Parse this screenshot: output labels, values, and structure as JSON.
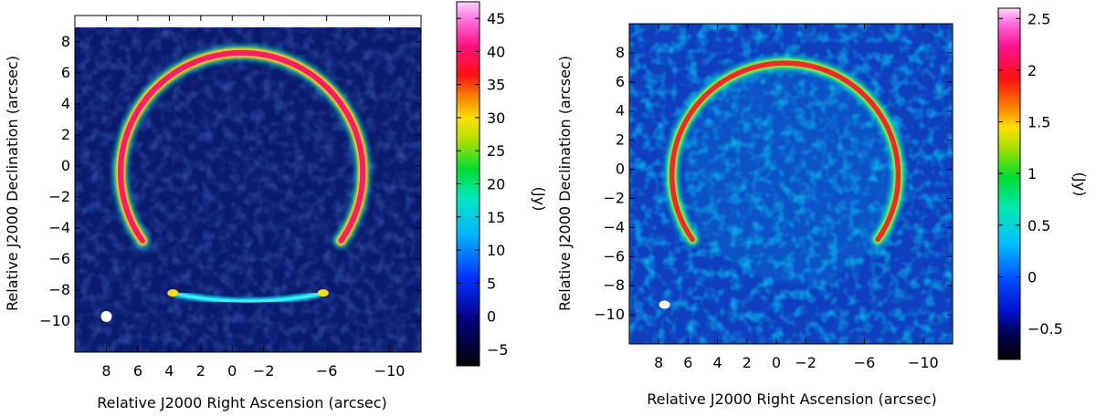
{
  "chart_data": [
    {
      "type": "heatmap",
      "xlabel": "Relative J2000 Right Ascension (arcsec)",
      "ylabel": "Relative J2000 Declination (arcsec)",
      "x_ticks": [
        "8",
        "6",
        "4",
        "2",
        "0",
        "−2",
        "−6",
        "−10"
      ],
      "x_tick_values": [
        8,
        6,
        4,
        2,
        0,
        -2,
        -6,
        -10
      ],
      "y_ticks": [
        "8",
        "6",
        "4",
        "2",
        "0",
        "−2",
        "−4",
        "−6",
        "−8",
        "−10"
      ],
      "y_tick_values": [
        8,
        6,
        4,
        2,
        0,
        -2,
        -4,
        -6,
        -8,
        -10
      ],
      "xlim": [
        10,
        -12
      ],
      "ylim": [
        -12,
        9.7
      ],
      "colorbar": {
        "label": "(Jy)",
        "ticks": [
          "45",
          "40",
          "35",
          "30",
          "25",
          "20",
          "15",
          "10",
          "5",
          "0",
          "−5"
        ],
        "tick_values": [
          45,
          40,
          35,
          30,
          25,
          20,
          15,
          10,
          5,
          0,
          -5
        ],
        "range": [
          -7.5,
          47.5
        ]
      },
      "beam": {
        "x": 8.0,
        "y": -9.7
      },
      "ring": {
        "cx": -0.6,
        "cy": -0.4,
        "r": 7.7
      },
      "arc_segment": {
        "cx": -0.6,
        "cy": -8.6,
        "x_from": 3.6,
        "x_to": -5.6
      },
      "colors": {
        "background": "#0a1a6e",
        "ring": "#e23a6e"
      }
    },
    {
      "type": "heatmap",
      "xlabel": "Relative J2000 Right Ascension (arcsec)",
      "ylabel": "Relative J2000 Declination (arcsec)",
      "x_ticks": [
        "8",
        "6",
        "4",
        "2",
        "0",
        "−2",
        "−6",
        "−10"
      ],
      "x_tick_values": [
        8,
        6,
        4,
        2,
        0,
        -2,
        -6,
        -10
      ],
      "y_ticks": [
        "8",
        "6",
        "4",
        "2",
        "0",
        "−2",
        "−4",
        "−6",
        "−8",
        "−10"
      ],
      "y_tick_values": [
        8,
        6,
        4,
        2,
        0,
        -2,
        -4,
        -6,
        -8,
        -10
      ],
      "xlim": [
        10,
        -12
      ],
      "ylim": [
        -12,
        10
      ],
      "colorbar": {
        "label": "(Jy)",
        "ticks": [
          "2.5",
          "2",
          "1.5",
          "1",
          "0.5",
          "0",
          "−0.5"
        ],
        "tick_values": [
          2.5,
          2,
          1.5,
          1,
          0.5,
          0,
          -0.5
        ],
        "range": [
          -0.8,
          2.6
        ]
      },
      "beam": {
        "x": 7.6,
        "y": -9.3
      },
      "ring": {
        "cx": -0.6,
        "cy": -0.4,
        "r": 7.7
      },
      "colors": {
        "background": "#1040c0",
        "ring": "#ff3020"
      }
    }
  ]
}
